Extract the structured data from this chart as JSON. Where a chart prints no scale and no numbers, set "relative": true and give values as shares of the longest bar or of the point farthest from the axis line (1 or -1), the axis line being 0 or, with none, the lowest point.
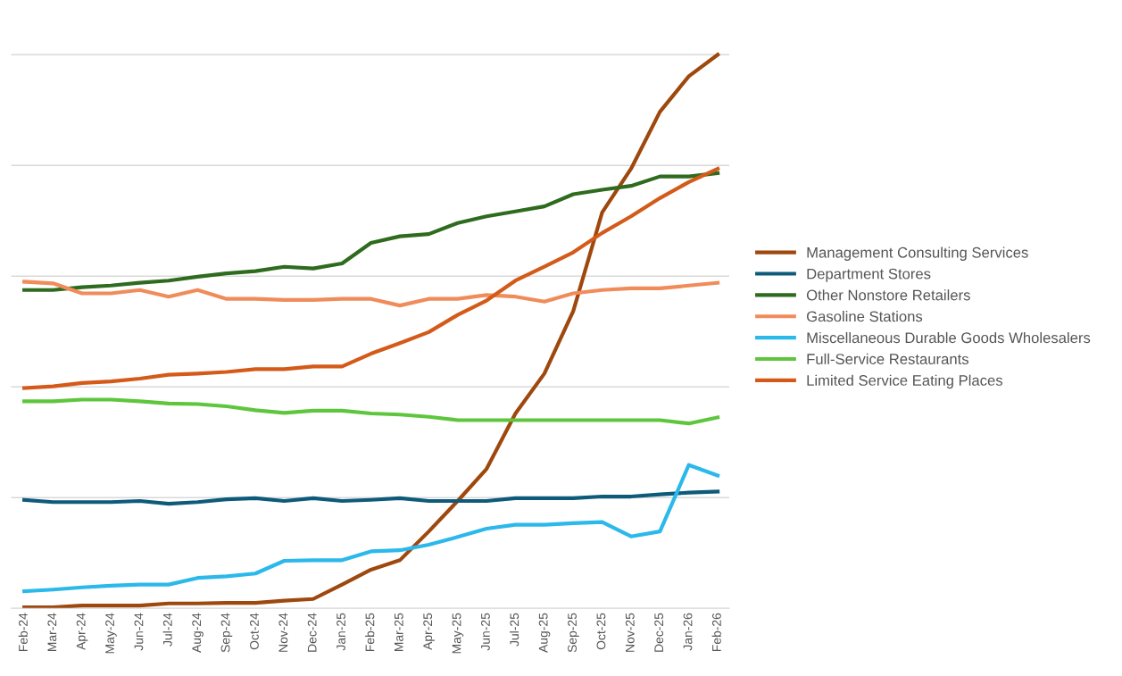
{
  "chart_data": {
    "type": "line",
    "relative": true,
    "grid": "y",
    "legend": "right",
    "tick_labels": "x",
    "marker": "none",
    "line_style": "solid",
    "categories": [
      "Feb-24",
      "Mar-24",
      "Apr-24",
      "May-24",
      "Jun-24",
      "Jul-24",
      "Aug-24",
      "Sep-24",
      "Oct-24",
      "Nov-24",
      "Dec-24",
      "Jan-25",
      "Feb-25",
      "Mar-25",
      "Apr-25",
      "May-25",
      "Jun-25",
      "Jul-25",
      "Aug-25",
      "Sep-25",
      "Oct-25",
      "Nov-25",
      "Dec-25",
      "Jan-26",
      "Feb-26"
    ],
    "series": [
      {
        "name": "Management Consulting Services",
        "color": "#9e480e",
        "values": [
          0.002,
          0.002,
          0.005,
          0.005,
          0.005,
          0.009,
          0.009,
          0.01,
          0.01,
          0.014,
          0.017,
          0.043,
          0.07,
          0.087,
          0.139,
          0.194,
          0.252,
          0.352,
          0.424,
          0.537,
          0.715,
          0.794,
          0.897,
          0.961,
          1.0
        ]
      },
      {
        "name": "Department Stores",
        "color": "#0e5a7a",
        "values": [
          0.196,
          0.192,
          0.192,
          0.192,
          0.194,
          0.189,
          0.192,
          0.197,
          0.199,
          0.194,
          0.199,
          0.194,
          0.196,
          0.199,
          0.194,
          0.194,
          0.194,
          0.199,
          0.199,
          0.199,
          0.202,
          0.202,
          0.206,
          0.209,
          0.211
        ]
      },
      {
        "name": "Other Nonstore Retailers",
        "color": "#2e6b1f",
        "values": [
          0.575,
          0.575,
          0.58,
          0.583,
          0.588,
          0.592,
          0.599,
          0.605,
          0.609,
          0.617,
          0.614,
          0.623,
          0.66,
          0.672,
          0.676,
          0.696,
          0.708,
          0.717,
          0.726,
          0.748,
          0.756,
          0.763,
          0.78,
          0.78,
          0.786
        ]
      },
      {
        "name": "Gasoline Stations",
        "color": "#f08c5a",
        "values": [
          0.59,
          0.587,
          0.569,
          0.569,
          0.575,
          0.563,
          0.575,
          0.559,
          0.559,
          0.557,
          0.557,
          0.559,
          0.559,
          0.547,
          0.559,
          0.559,
          0.566,
          0.563,
          0.554,
          0.569,
          0.575,
          0.578,
          0.578,
          0.583,
          0.588
        ]
      },
      {
        "name": "Miscellaneous Durable Goods Wholesalers",
        "color": "#2bb8ea",
        "values": [
          0.031,
          0.034,
          0.038,
          0.041,
          0.043,
          0.043,
          0.055,
          0.058,
          0.063,
          0.086,
          0.087,
          0.087,
          0.103,
          0.105,
          0.115,
          0.129,
          0.144,
          0.151,
          0.151,
          0.154,
          0.156,
          0.13,
          0.139,
          0.259,
          0.24
        ]
      },
      {
        "name": "Full-Service Restaurants",
        "color": "#5ec63c",
        "values": [
          0.374,
          0.374,
          0.377,
          0.377,
          0.374,
          0.37,
          0.369,
          0.365,
          0.358,
          0.353,
          0.357,
          0.357,
          0.352,
          0.35,
          0.346,
          0.34,
          0.34,
          0.34,
          0.34,
          0.34,
          0.34,
          0.34,
          0.34,
          0.334,
          0.345
        ]
      },
      {
        "name": "Limited Service Eating Places",
        "color": "#d45a1a",
        "values": [
          0.398,
          0.401,
          0.407,
          0.41,
          0.415,
          0.422,
          0.424,
          0.427,
          0.432,
          0.432,
          0.437,
          0.437,
          0.46,
          0.479,
          0.499,
          0.53,
          0.556,
          0.592,
          0.617,
          0.643,
          0.678,
          0.708,
          0.741,
          0.77,
          0.794
        ]
      }
    ]
  }
}
